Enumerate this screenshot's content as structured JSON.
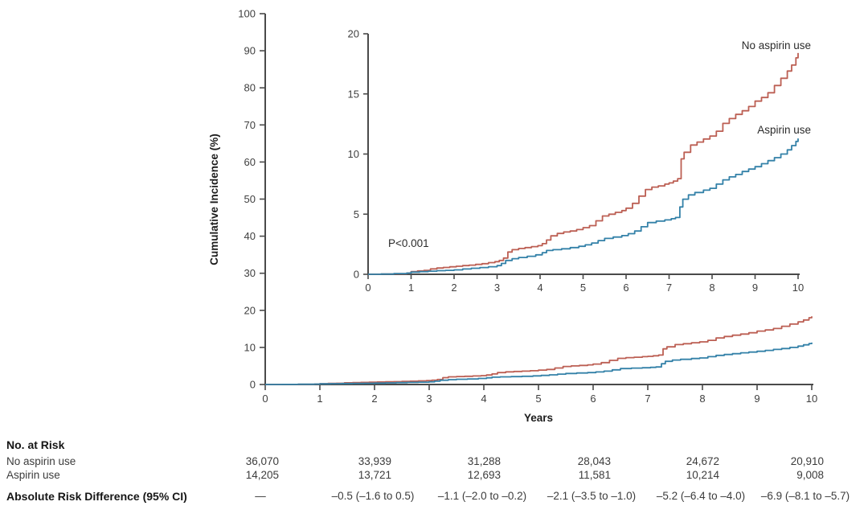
{
  "chart_data": {
    "type": "line",
    "subtype": "step-cumulative-incidence",
    "title": "",
    "xlabel": "Years",
    "ylabel": "Cumulative Incidence (%)",
    "annotation": "P<0.001",
    "legend_position": "inline-right",
    "grid": false,
    "main_axis": {
      "xlim": [
        0,
        10
      ],
      "ylim": [
        0,
        100
      ],
      "xticks": [
        0,
        1,
        2,
        3,
        4,
        5,
        6,
        7,
        8,
        9,
        10
      ],
      "yticks": [
        0,
        10,
        20,
        30,
        40,
        50,
        60,
        70,
        80,
        90,
        100
      ]
    },
    "inset_axis": {
      "xlim": [
        0,
        10
      ],
      "ylim": [
        0,
        20
      ],
      "xticks": [
        0,
        1,
        2,
        3,
        4,
        5,
        6,
        7,
        8,
        9,
        10
      ],
      "yticks": [
        0,
        5,
        10,
        15,
        20
      ]
    },
    "series": [
      {
        "name": "No aspirin use",
        "color": "#bc5f53",
        "points": [
          [
            0,
            0
          ],
          [
            0.3,
            0.02
          ],
          [
            0.6,
            0.05
          ],
          [
            0.9,
            0.1
          ],
          [
            1.0,
            0.22
          ],
          [
            1.15,
            0.28
          ],
          [
            1.3,
            0.32
          ],
          [
            1.45,
            0.45
          ],
          [
            1.6,
            0.52
          ],
          [
            1.75,
            0.57
          ],
          [
            1.9,
            0.62
          ],
          [
            2.05,
            0.67
          ],
          [
            2.2,
            0.72
          ],
          [
            2.35,
            0.76
          ],
          [
            2.5,
            0.82
          ],
          [
            2.65,
            0.88
          ],
          [
            2.8,
            0.97
          ],
          [
            2.95,
            1.05
          ],
          [
            3.05,
            1.15
          ],
          [
            3.15,
            1.35
          ],
          [
            3.25,
            1.85
          ],
          [
            3.35,
            2.05
          ],
          [
            3.5,
            2.15
          ],
          [
            3.65,
            2.22
          ],
          [
            3.8,
            2.3
          ],
          [
            3.95,
            2.38
          ],
          [
            4.05,
            2.55
          ],
          [
            4.15,
            2.85
          ],
          [
            4.25,
            3.2
          ],
          [
            4.4,
            3.4
          ],
          [
            4.55,
            3.52
          ],
          [
            4.7,
            3.6
          ],
          [
            4.85,
            3.72
          ],
          [
            5.0,
            3.88
          ],
          [
            5.15,
            4.05
          ],
          [
            5.3,
            4.45
          ],
          [
            5.45,
            4.85
          ],
          [
            5.6,
            5.0
          ],
          [
            5.75,
            5.15
          ],
          [
            5.9,
            5.3
          ],
          [
            6.0,
            5.5
          ],
          [
            6.15,
            5.9
          ],
          [
            6.3,
            6.5
          ],
          [
            6.45,
            7.05
          ],
          [
            6.6,
            7.25
          ],
          [
            6.75,
            7.35
          ],
          [
            6.9,
            7.5
          ],
          [
            7.0,
            7.6
          ],
          [
            7.1,
            7.75
          ],
          [
            7.2,
            7.95
          ],
          [
            7.28,
            9.6
          ],
          [
            7.35,
            10.15
          ],
          [
            7.5,
            10.75
          ],
          [
            7.65,
            11.0
          ],
          [
            7.8,
            11.25
          ],
          [
            7.95,
            11.5
          ],
          [
            8.1,
            11.9
          ],
          [
            8.25,
            12.55
          ],
          [
            8.4,
            12.95
          ],
          [
            8.55,
            13.3
          ],
          [
            8.7,
            13.6
          ],
          [
            8.85,
            13.95
          ],
          [
            9.0,
            14.4
          ],
          [
            9.15,
            14.7
          ],
          [
            9.3,
            15.1
          ],
          [
            9.45,
            15.7
          ],
          [
            9.6,
            16.3
          ],
          [
            9.75,
            16.9
          ],
          [
            9.85,
            17.4
          ],
          [
            9.95,
            18.0
          ],
          [
            10.0,
            18.4
          ]
        ]
      },
      {
        "name": "Aspirin use",
        "color": "#3381a8",
        "points": [
          [
            0,
            0
          ],
          [
            0.3,
            0.02
          ],
          [
            0.6,
            0.06
          ],
          [
            0.9,
            0.1
          ],
          [
            1.0,
            0.18
          ],
          [
            1.2,
            0.22
          ],
          [
            1.4,
            0.26
          ],
          [
            1.6,
            0.3
          ],
          [
            1.8,
            0.33
          ],
          [
            2.0,
            0.37
          ],
          [
            2.2,
            0.44
          ],
          [
            2.4,
            0.5
          ],
          [
            2.6,
            0.56
          ],
          [
            2.8,
            0.63
          ],
          [
            3.0,
            0.72
          ],
          [
            3.1,
            0.9
          ],
          [
            3.2,
            1.15
          ],
          [
            3.35,
            1.3
          ],
          [
            3.5,
            1.4
          ],
          [
            3.7,
            1.5
          ],
          [
            3.9,
            1.62
          ],
          [
            4.05,
            1.8
          ],
          [
            4.15,
            1.98
          ],
          [
            4.3,
            2.05
          ],
          [
            4.5,
            2.12
          ],
          [
            4.7,
            2.22
          ],
          [
            4.9,
            2.33
          ],
          [
            5.05,
            2.45
          ],
          [
            5.2,
            2.6
          ],
          [
            5.35,
            2.8
          ],
          [
            5.5,
            2.98
          ],
          [
            5.7,
            3.1
          ],
          [
            5.9,
            3.22
          ],
          [
            6.05,
            3.38
          ],
          [
            6.2,
            3.6
          ],
          [
            6.35,
            3.95
          ],
          [
            6.5,
            4.3
          ],
          [
            6.7,
            4.42
          ],
          [
            6.9,
            4.52
          ],
          [
            7.05,
            4.62
          ],
          [
            7.15,
            4.72
          ],
          [
            7.25,
            5.6
          ],
          [
            7.32,
            6.25
          ],
          [
            7.45,
            6.6
          ],
          [
            7.6,
            6.8
          ],
          [
            7.8,
            7.0
          ],
          [
            7.95,
            7.15
          ],
          [
            8.1,
            7.5
          ],
          [
            8.25,
            7.85
          ],
          [
            8.4,
            8.1
          ],
          [
            8.55,
            8.3
          ],
          [
            8.7,
            8.55
          ],
          [
            8.85,
            8.75
          ],
          [
            9.0,
            8.95
          ],
          [
            9.15,
            9.2
          ],
          [
            9.3,
            9.45
          ],
          [
            9.45,
            9.7
          ],
          [
            9.6,
            10.0
          ],
          [
            9.75,
            10.35
          ],
          [
            9.85,
            10.7
          ],
          [
            9.95,
            11.05
          ],
          [
            10.0,
            11.3
          ]
        ]
      }
    ]
  },
  "risk_table": {
    "header": "No. at Risk",
    "rows": [
      {
        "label": "No aspirin use",
        "values": [
          "36,070",
          "33,939",
          "31,288",
          "28,043",
          "24,672",
          "20,910"
        ]
      },
      {
        "label": "Aspirin use",
        "values": [
          "14,205",
          "13,721",
          "12,693",
          "11,581",
          "10,214",
          "9,008"
        ]
      }
    ],
    "footer": {
      "label": "Absolute Risk Difference (95% CI)",
      "values": [
        "—",
        "–0.5 (–1.6 to 0.5)",
        "–1.1 (–2.0 to –0.2)",
        "–2.1 (–3.5 to –1.0)",
        "–5.2 (–6.4 to –4.0)",
        "–6.9 (–8.1 to –5.7)"
      ]
    }
  }
}
